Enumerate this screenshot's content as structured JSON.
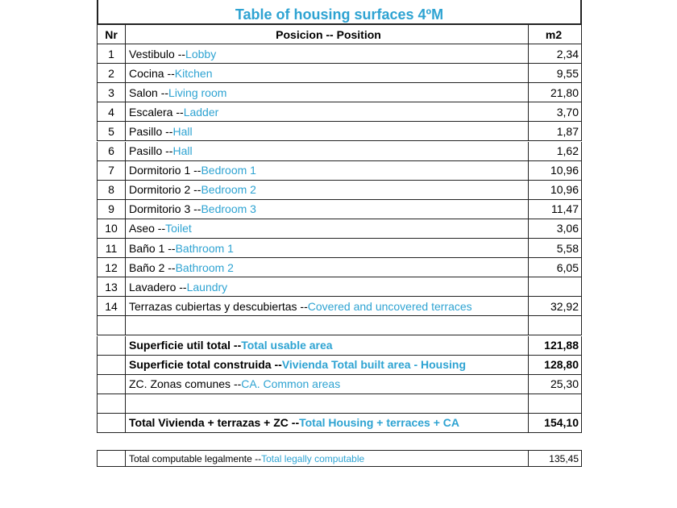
{
  "header": {
    "title": "Table of housing surfaces 4ºM"
  },
  "table": {
    "columns": [
      "Nr",
      "Posicion -- Position",
      "m2"
    ],
    "rows": [
      {
        "nr": 1,
        "es": "Vestibulo --",
        "en": "Lobby",
        "m2": "2,34"
      },
      {
        "nr": 2,
        "es": "Cocina --",
        "en": "Kitchen",
        "m2": "9,55"
      },
      {
        "nr": 3,
        "es": "Salon --",
        "en": "Living room",
        "m2": "21,80"
      },
      {
        "nr": 4,
        "es": "Escalera --",
        "en": "Ladder",
        "m2": "3,70"
      },
      {
        "nr": 5,
        "es": "Pasillo --",
        "en": "Hall",
        "m2": "1,87"
      },
      {
        "nr": 6,
        "es": "Pasillo --",
        "en": "Hall",
        "m2": "1,62"
      },
      {
        "nr": 7,
        "es": "Dormitorio 1 --",
        "en": "Bedroom 1",
        "m2": "10,96"
      },
      {
        "nr": 8,
        "es": "Dormitorio 2 --",
        "en": "Bedroom 2",
        "m2": "10,96"
      },
      {
        "nr": 9,
        "es": "Dormitorio 3 --",
        "en": "Bedroom 3",
        "m2": "11,47"
      },
      {
        "nr": 10,
        "es": "Aseo --",
        "en": "Toilet",
        "m2": "3,06"
      },
      {
        "nr": 11,
        "es": "Baño 1 --",
        "en": "Bathroom 1",
        "m2": "5,58"
      },
      {
        "nr": 12,
        "es": "Baño 2 --",
        "en": "Bathroom 2",
        "m2": "6,05"
      },
      {
        "nr": 13,
        "es": "Lavadero --",
        "en": "Laundry"
      },
      {
        "nr": 14,
        "es": "Terrazas cubiertas y descubiertas --",
        "en": "Covered and uncovered terraces",
        "m2": "32,92"
      }
    ]
  },
  "summary": [
    {
      "es": "Superficie util total --",
      "en": "Total usable area",
      "m2": "121,88",
      "bold": true
    },
    {
      "es": "Superficie total construida --",
      "en": "Vivienda Total built area - Housing",
      "m2": "128,80",
      "bold": true
    },
    {
      "es": "ZC. Zonas comunes --",
      "en": "CA. Common areas",
      "m2": "25,30",
      "bold": false
    }
  ],
  "total": {
    "es": "Total Vivienda + terrazas + ZC --",
    "en": "Total Housing + terraces + CA",
    "m2": "154,10"
  },
  "footer": {
    "es": "Total computable legalmente --",
    "en": "Total legally computable",
    "m2": "135,45"
  }
}
